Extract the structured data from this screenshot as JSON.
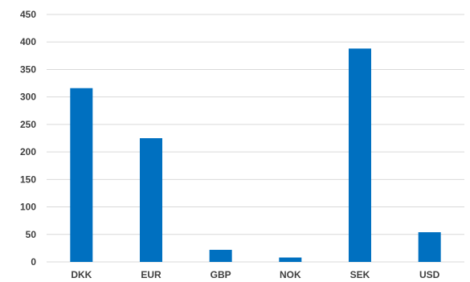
{
  "chart_data": {
    "type": "bar",
    "categories": [
      "DKK",
      "EUR",
      "GBP",
      "NOK",
      "SEK",
      "USD"
    ],
    "values": [
      316,
      225,
      22,
      8,
      388,
      54
    ],
    "ylim": [
      0,
      450
    ],
    "yticks": [
      0,
      50,
      100,
      150,
      200,
      250,
      300,
      350,
      400,
      450
    ],
    "grid": true,
    "legend": "none",
    "title": "",
    "xlabel": "",
    "ylabel": "",
    "bar_color": "#0070c0"
  }
}
